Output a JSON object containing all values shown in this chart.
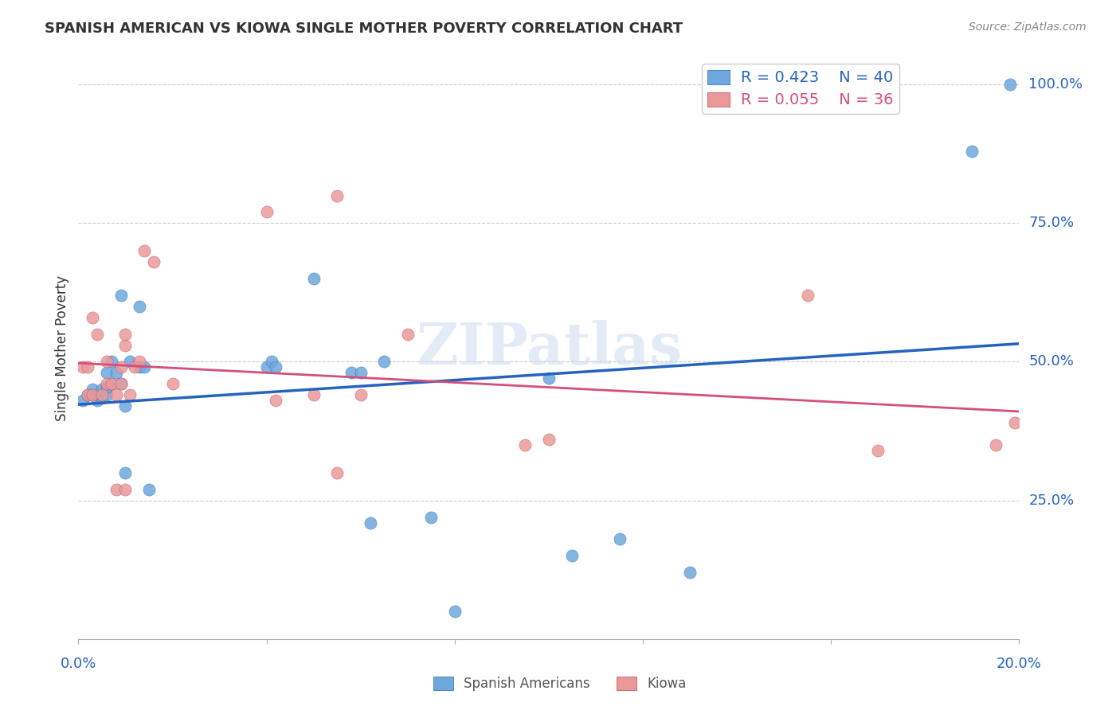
{
  "title": "SPANISH AMERICAN VS KIOWA SINGLE MOTHER POVERTY CORRELATION CHART",
  "source": "Source: ZipAtlas.com",
  "xlabel": "",
  "ylabel": "Single Mother Poverty",
  "xlim": [
    0.0,
    0.2
  ],
  "ylim": [
    0.0,
    1.05
  ],
  "yticks": [
    0.0,
    0.25,
    0.5,
    0.75,
    1.0
  ],
  "ytick_labels": [
    "",
    "25.0%",
    "50.0%",
    "75.0%",
    "100.0%"
  ],
  "xticks": [
    0.0,
    0.04,
    0.08,
    0.12,
    0.16,
    0.2
  ],
  "xtick_labels": [
    "0.0%",
    "",
    "",
    "",
    "",
    "20.0%"
  ],
  "legend_blue_r": "R = 0.423",
  "legend_blue_n": "N = 40",
  "legend_pink_r": "R = 0.055",
  "legend_pink_n": "N = 36",
  "blue_color": "#6fa8dc",
  "pink_color": "#ea9999",
  "blue_line_color": "#2563c0",
  "pink_line_color": "#d44f7a",
  "watermark": "ZIPatlas",
  "blue_x": [
    0.001,
    0.002,
    0.003,
    0.003,
    0.004,
    0.004,
    0.005,
    0.005,
    0.005,
    0.006,
    0.006,
    0.006,
    0.007,
    0.007,
    0.008,
    0.009,
    0.009,
    0.01,
    0.01,
    0.011,
    0.013,
    0.013,
    0.014,
    0.015,
    0.04,
    0.041,
    0.042,
    0.05,
    0.058,
    0.06,
    0.062,
    0.065,
    0.075,
    0.08,
    0.1,
    0.105,
    0.115,
    0.13,
    0.19,
    0.198
  ],
  "blue_y": [
    0.43,
    0.44,
    0.44,
    0.45,
    0.43,
    0.44,
    0.435,
    0.44,
    0.45,
    0.44,
    0.455,
    0.48,
    0.46,
    0.5,
    0.48,
    0.62,
    0.46,
    0.42,
    0.3,
    0.5,
    0.6,
    0.49,
    0.49,
    0.27,
    0.49,
    0.5,
    0.49,
    0.65,
    0.48,
    0.48,
    0.21,
    0.5,
    0.22,
    0.05,
    0.47,
    0.15,
    0.18,
    0.12,
    0.88,
    1.0
  ],
  "pink_x": [
    0.001,
    0.002,
    0.002,
    0.003,
    0.003,
    0.004,
    0.005,
    0.006,
    0.006,
    0.007,
    0.008,
    0.008,
    0.009,
    0.009,
    0.01,
    0.01,
    0.01,
    0.011,
    0.012,
    0.013,
    0.014,
    0.016,
    0.02,
    0.04,
    0.042,
    0.05,
    0.055,
    0.055,
    0.06,
    0.07,
    0.095,
    0.1,
    0.155,
    0.17,
    0.195,
    0.199
  ],
  "pink_y": [
    0.49,
    0.44,
    0.49,
    0.58,
    0.44,
    0.55,
    0.44,
    0.46,
    0.5,
    0.46,
    0.44,
    0.27,
    0.49,
    0.46,
    0.53,
    0.55,
    0.27,
    0.44,
    0.49,
    0.5,
    0.7,
    0.68,
    0.46,
    0.77,
    0.43,
    0.44,
    0.8,
    0.3,
    0.44,
    0.55,
    0.35,
    0.36,
    0.62,
    0.34,
    0.35,
    0.39
  ]
}
